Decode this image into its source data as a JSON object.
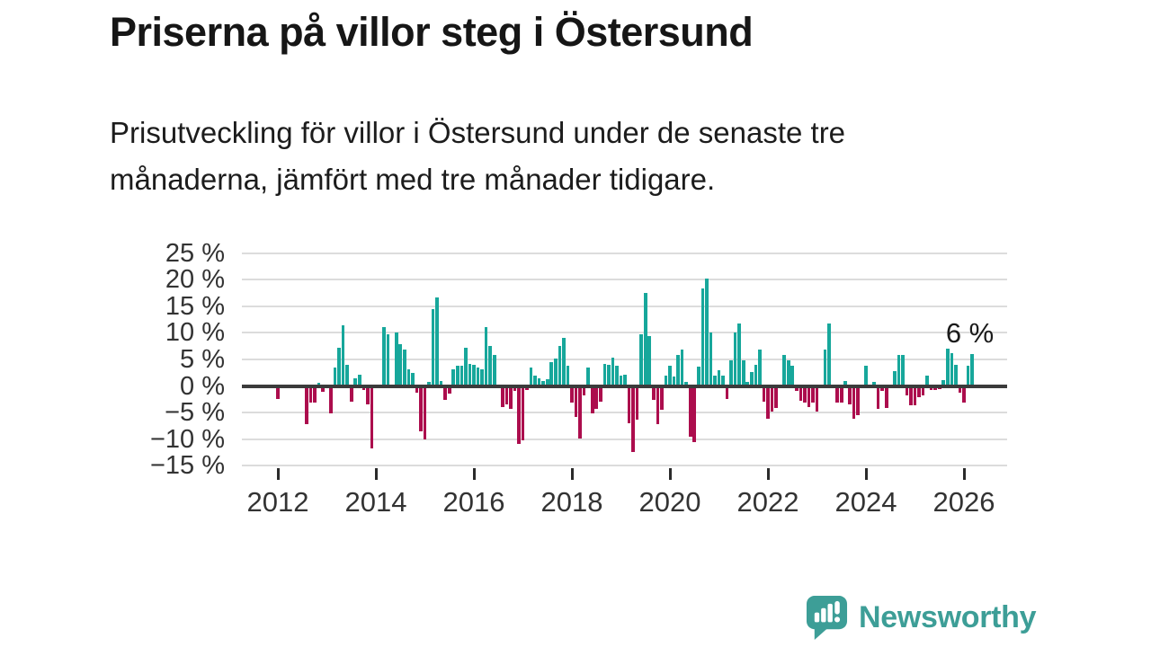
{
  "title": "Priserna på villor steg i Östersund",
  "subtitle_lines": [
    "Prisutveckling för villor i Östersund under de senaste tre",
    "månaderna, jämfört med tre månader tidigare."
  ],
  "branding": {
    "name": "Newsworthy",
    "color": "#3d9e97",
    "icon": "bar-chart-speech-bubble"
  },
  "colors": {
    "positive_bar": "#17a79b",
    "negative_bar": "#ac0d4d",
    "zero_axis": "#3b3b3b",
    "gridline": "#dcdcdc",
    "text": "#1a1a1a"
  },
  "chart_data": {
    "type": "bar",
    "title": "Priserna på villor steg i Östersund",
    "xlabel": "",
    "ylabel": "",
    "unit": "%",
    "grid": true,
    "xlim": [
      2011.27,
      2026.88
    ],
    "ylim": [
      -17,
      27
    ],
    "x_ticks": [
      2012,
      2014,
      2016,
      2018,
      2020,
      2022,
      2024,
      2026
    ],
    "x_tick_labels": [
      "2012",
      "2014",
      "2016",
      "2018",
      "2020",
      "2022",
      "2024",
      "2026"
    ],
    "y_ticks": [
      25,
      20,
      15,
      10,
      5,
      0,
      -5,
      -10,
      -15
    ],
    "y_tick_labels": [
      "25 %",
      "20 %",
      "15 %",
      "10 %",
      "5 %",
      "0 %",
      "−5 %",
      "−10 %",
      "−15 %"
    ],
    "annotation": {
      "text": "6 %",
      "x": 2026.12,
      "y": 13
    },
    "x": [
      2012.0,
      2012.583,
      2012.667,
      2012.75,
      2012.833,
      2012.917,
      2013.083,
      2013.167,
      2013.25,
      2013.333,
      2013.417,
      2013.5,
      2013.583,
      2013.667,
      2013.75,
      2013.833,
      2013.917,
      2014.167,
      2014.25,
      2014.417,
      2014.5,
      2014.583,
      2014.667,
      2014.75,
      2014.833,
      2014.917,
      2015.0,
      2015.083,
      2015.167,
      2015.25,
      2015.333,
      2015.417,
      2015.5,
      2015.583,
      2015.667,
      2015.75,
      2015.833,
      2015.917,
      2016.0,
      2016.083,
      2016.167,
      2016.25,
      2016.333,
      2016.417,
      2016.583,
      2016.667,
      2016.75,
      2016.833,
      2016.917,
      2017.0,
      2017.083,
      2017.167,
      2017.25,
      2017.333,
      2017.417,
      2017.5,
      2017.583,
      2017.667,
      2017.75,
      2017.833,
      2017.917,
      2018.0,
      2018.083,
      2018.167,
      2018.25,
      2018.333,
      2018.417,
      2018.5,
      2018.583,
      2018.667,
      2018.75,
      2018.833,
      2018.917,
      2019.0,
      2019.083,
      2019.167,
      2019.25,
      2019.333,
      2019.417,
      2019.5,
      2019.583,
      2019.667,
      2019.75,
      2019.833,
      2019.917,
      2020.0,
      2020.083,
      2020.167,
      2020.25,
      2020.333,
      2020.417,
      2020.5,
      2020.583,
      2020.667,
      2020.75,
      2020.833,
      2020.917,
      2021.0,
      2021.083,
      2021.167,
      2021.25,
      2021.333,
      2021.417,
      2021.5,
      2021.583,
      2021.667,
      2021.75,
      2021.833,
      2021.917,
      2022.0,
      2022.083,
      2022.167,
      2022.333,
      2022.417,
      2022.5,
      2022.583,
      2022.667,
      2022.75,
      2022.833,
      2022.917,
      2023.0,
      2023.167,
      2023.25,
      2023.417,
      2023.5,
      2023.583,
      2023.667,
      2023.75,
      2023.833,
      2024.0,
      2024.167,
      2024.25,
      2024.333,
      2024.417,
      2024.583,
      2024.667,
      2024.75,
      2024.833,
      2024.917,
      2025.0,
      2025.083,
      2025.167,
      2025.25,
      2025.333,
      2025.417,
      2025.5,
      2025.583,
      2025.667,
      2025.75,
      2025.833,
      2025.917,
      2026.0,
      2026.083,
      2026.167
    ],
    "values": [
      -2.5,
      -7.2,
      -3.1,
      -3.2,
      0.6,
      -1.1,
      -5.2,
      3.5,
      7.2,
      11.5,
      3.9,
      -2.9,
      1.4,
      2.1,
      -0.8,
      -3.5,
      -11.8,
      11.1,
      9.7,
      10.0,
      7.9,
      6.8,
      3.1,
      2.4,
      -1.3,
      -8.5,
      -10.0,
      0.7,
      14.5,
      16.7,
      1.0,
      -2.6,
      -1.5,
      3.1,
      3.8,
      3.8,
      7.2,
      4.1,
      3.9,
      3.4,
      3.1,
      11.1,
      7.6,
      5.8,
      -3.9,
      -3.5,
      -4.3,
      -1.0,
      -10.9,
      -10.3,
      -0.7,
      3.5,
      1.9,
      1.4,
      1.0,
      1.3,
      4.5,
      5.1,
      7.5,
      9.0,
      3.8,
      -3.1,
      -5.9,
      -9.9,
      -1.7,
      3.4,
      -5.1,
      -4.3,
      -3.0,
      4.1,
      3.9,
      5.4,
      3.8,
      1.9,
      2.1,
      -7.0,
      -12.4,
      -6.4,
      9.7,
      17.6,
      9.4,
      -2.6,
      -7.2,
      -4.5,
      1.9,
      3.8,
      1.7,
      5.8,
      6.9,
      0.7,
      -9.6,
      -10.5,
      3.7,
      18.3,
      20.3,
      10.0,
      2.0,
      3.0,
      1.9,
      -2.4,
      4.9,
      10.0,
      11.7,
      4.9,
      0.7,
      2.6,
      3.9,
      6.9,
      -3.0,
      -6.2,
      -4.8,
      -4.1,
      5.9,
      4.9,
      3.8,
      -1.0,
      -2.8,
      -3.1,
      -3.9,
      -3.1,
      -4.8,
      6.8,
      11.7,
      -3.1,
      -3.1,
      1.0,
      -3.5,
      -6.2,
      -5.5,
      3.8,
      0.8,
      -4.3,
      -1.0,
      -4.2,
      2.8,
      5.9,
      5.9,
      -1.8,
      -3.7,
      -3.7,
      -2.1,
      -1.7,
      1.9,
      -0.8,
      -0.7,
      -0.6,
      1.1,
      7.1,
      6.1,
      3.9,
      -1.3,
      -3.1,
      3.8,
      6.0
    ]
  }
}
